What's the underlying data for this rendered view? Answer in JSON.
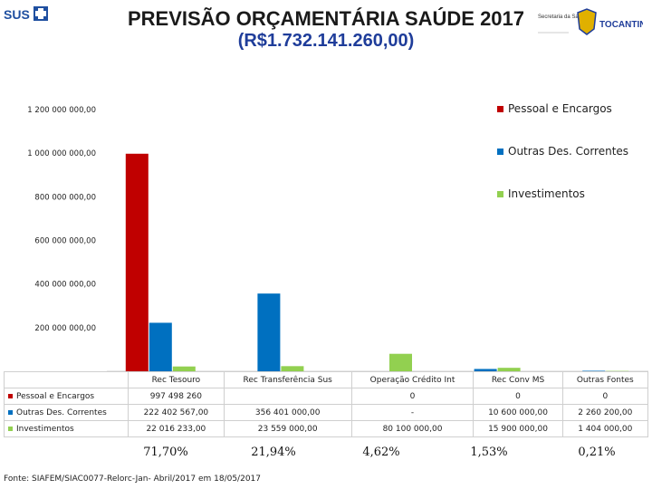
{
  "header": {
    "title": "PREVISÃO ORÇAMENTÁRIA SAÚDE 2017",
    "total": "(R$1.732.141.260,00)",
    "logo_left_text": "SUS",
    "logo_right_text": "TOCANTINS",
    "logo_right_caption": "Secretaria da Saúde"
  },
  "chart_data": {
    "type": "bar",
    "categories": [
      "Rec Tesouro",
      "Rec Transferência Sus",
      "Operação Crédito Int",
      "Rec Conv MS",
      "Outras Fontes"
    ],
    "series": [
      {
        "name": "Pessoal e Encargos",
        "color": "#c00000",
        "values": [
          997498260,
          0,
          0,
          0,
          0
        ]
      },
      {
        "name": "Outras Des. Correntes",
        "color": "#0070c0",
        "values": [
          222402567,
          356401000,
          0,
          10600000,
          2260200
        ]
      },
      {
        "name": "Investimentos",
        "color": "#92d050",
        "values": [
          22016233,
          23559000,
          80100000,
          15900000,
          1404000
        ]
      }
    ],
    "ylim": [
      0,
      1200000000
    ],
    "yticks": [
      "-",
      "200 000 000,00",
      "400 000 000,00",
      "600 000 000,00",
      "800 000 000,00",
      "1 000 000 000,00",
      "1 200 000 000,00"
    ],
    "legend_position": "top-right",
    "grid": false
  },
  "table": {
    "rows": [
      {
        "label": "Pessoal e Encargos",
        "color": "#c00000",
        "cells": [
          "997 498 260",
          "",
          "0",
          "0",
          "0"
        ]
      },
      {
        "label": "Outras Des. Correntes",
        "color": "#0070c0",
        "cells": [
          "222 402 567,00",
          "356 401 000,00",
          "-",
          "10 600 000,00",
          "2 260 200,00"
        ]
      },
      {
        "label": "Investimentos",
        "color": "#92d050",
        "cells": [
          "22 016 233,00",
          "23 559 000,00",
          "80 100 000,00",
          "15 900 000,00",
          "1 404 000,00"
        ]
      }
    ]
  },
  "percentages": [
    "71,70%",
    "21,94%",
    "4,62%",
    "1,53%",
    "0,21%"
  ],
  "source": "Fonte: SIAFEM/SIAC0077-Relorc-Jan- Abril/2017 em 18/05/2017"
}
